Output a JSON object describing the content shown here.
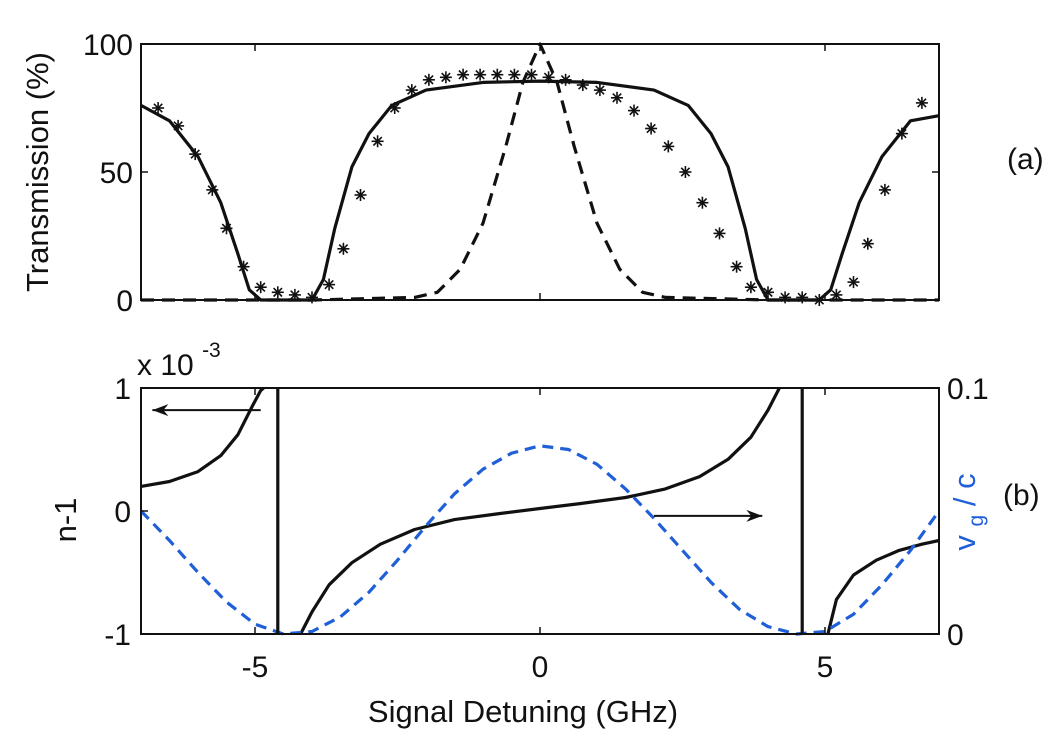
{
  "chart_data": [
    {
      "panel": "(a)",
      "type": "line",
      "ylabel": "Transmission (%)",
      "xlim": [
        -7,
        7
      ],
      "ylim": [
        0,
        100
      ],
      "xticks": [
        -5,
        0,
        5
      ],
      "yticks": [
        0,
        50,
        100
      ],
      "grid": false,
      "series": [
        {
          "style": "solid",
          "x": [
            -7,
            -6.5,
            -6,
            -5.6,
            -5.3,
            -5.1,
            -4.9,
            -4.5,
            -4.0,
            -3.8,
            -3.6,
            -3.3,
            -3.0,
            -2.6,
            -2.0,
            -1.0,
            0,
            1.0,
            2.0,
            2.6,
            3.0,
            3.3,
            3.6,
            3.8,
            4.0,
            4.5,
            4.9,
            5.1,
            5.3,
            5.6,
            6.0,
            6.5,
            7
          ],
          "y": [
            76,
            70,
            56,
            38,
            18,
            4,
            0,
            0,
            0,
            8,
            28,
            52,
            65,
            76,
            82,
            85,
            85.5,
            85,
            82,
            76,
            65,
            52,
            28,
            8,
            0,
            0,
            0,
            4,
            18,
            38,
            56,
            70,
            72
          ]
        },
        {
          "style": "dashed",
          "x": [
            -7,
            -4,
            -2.2,
            -1.8,
            -1.4,
            -1.0,
            -0.6,
            -0.3,
            0,
            0.3,
            0.6,
            1.0,
            1.4,
            1.8,
            2.2,
            4,
            7
          ],
          "y": [
            0,
            0,
            1,
            3,
            12,
            30,
            60,
            85,
            100,
            85,
            60,
            30,
            12,
            3,
            1,
            0,
            0
          ],
          "xrange_drawn": [
            -3.8,
            3.8
          ]
        },
        {
          "style": "markers",
          "marker": "asterisk",
          "x": [
            -6.7,
            -6.35,
            -6.05,
            -5.75,
            -5.5,
            -5.2,
            -4.9,
            -4.6,
            -4.3,
            -4.0,
            -3.7,
            -3.45,
            -3.15,
            -2.85,
            -2.55,
            -2.25,
            -1.95,
            -1.65,
            -1.35,
            -1.05,
            -0.75,
            -0.45,
            -0.15,
            0.15,
            0.45,
            0.75,
            1.05,
            1.35,
            1.65,
            1.95,
            2.25,
            2.55,
            2.85,
            3.15,
            3.45,
            3.7,
            4.0,
            4.3,
            4.6,
            4.9,
            5.2,
            5.5,
            5.75,
            6.05,
            6.35,
            6.7
          ],
          "y": [
            75,
            68,
            57,
            43,
            28,
            13,
            5,
            3,
            2,
            1,
            6,
            20,
            41,
            62,
            75,
            82,
            86,
            87,
            88,
            88,
            88,
            88,
            88,
            87,
            86,
            84,
            82,
            79,
            74,
            67,
            60,
            50,
            38,
            26,
            13,
            5,
            3,
            1,
            1,
            0,
            2,
            7,
            22,
            43,
            65,
            77
          ]
        }
      ]
    },
    {
      "panel": "(b)",
      "type": "line",
      "xlabel": "Signal Detuning (GHz)",
      "ylabel_left": "n-1",
      "ylabel_right_main": "v",
      "ylabel_right_sub": "g",
      "ylabel_right_rest": " / c",
      "y_multiplier": "x 10",
      "y_multiplier_exp": "-3",
      "xlim": [
        -7,
        7
      ],
      "ylim_left": [
        -1,
        1
      ],
      "ylim_right": [
        0,
        0.1
      ],
      "xticks": [
        -5,
        0,
        5
      ],
      "yticks_left": [
        -1,
        0,
        1
      ],
      "yticks_right": [
        0,
        0.1
      ],
      "right_axis_color": "#1f5fd8",
      "poles": [
        -4.6,
        4.6
      ],
      "series": [
        {
          "name": "n-1",
          "axis": "left",
          "style": "solid",
          "segments": [
            {
              "x": [
                -7,
                -6.5,
                -6,
                -5.6,
                -5.3,
                -5.05,
                -4.9,
                -4.85
              ],
              "y": [
                0.2,
                0.24,
                0.32,
                0.45,
                0.62,
                0.85,
                0.98,
                1.0
              ]
            },
            {
              "x": [
                -4.2,
                -4.0,
                -3.7,
                -3.3,
                -2.8,
                -2.2,
                -1.5,
                -0.7,
                0,
                0.7,
                1.5,
                2.2,
                2.8,
                3.3,
                3.7,
                4.0,
                4.2
              ],
              "y": [
                -1.0,
                -0.82,
                -0.6,
                -0.42,
                -0.27,
                -0.15,
                -0.07,
                -0.02,
                0.02,
                0.06,
                0.11,
                0.18,
                0.28,
                0.42,
                0.6,
                0.82,
                1.0
              ]
            },
            {
              "x": [
                5.05,
                5.2,
                5.5,
                5.9,
                6.3,
                6.7,
                7
              ],
              "y": [
                -1.0,
                -0.72,
                -0.52,
                -0.4,
                -0.32,
                -0.27,
                -0.24
              ]
            }
          ]
        },
        {
          "name": "vg/c",
          "axis": "right",
          "style": "dashed",
          "color": "#1f5fd8",
          "x": [
            -7,
            -6.5,
            -6,
            -5.5,
            -5,
            -4.5,
            -4.0,
            -3.5,
            -3.0,
            -2.5,
            -2.0,
            -1.5,
            -1.0,
            -0.5,
            0,
            0.5,
            1.0,
            1.5,
            2.0,
            2.5,
            3.0,
            3.5,
            4.0,
            4.5,
            5,
            5.5,
            6,
            6.5,
            7
          ],
          "y": [
            0.05,
            0.038,
            0.025,
            0.013,
            0.004,
            0.0,
            0.001,
            0.007,
            0.017,
            0.03,
            0.044,
            0.057,
            0.067,
            0.0735,
            0.0765,
            0.075,
            0.069,
            0.059,
            0.047,
            0.034,
            0.021,
            0.01,
            0.003,
            0.0,
            0.001,
            0.008,
            0.02,
            0.034,
            0.05
          ]
        }
      ],
      "arrows": [
        {
          "direction": "left",
          "from": [
            -4.9,
            0.82
          ],
          "to": [
            -6.8,
            0.82
          ]
        },
        {
          "direction": "right",
          "from": [
            2.0,
            -0.04
          ],
          "to": [
            3.9,
            -0.04
          ]
        }
      ]
    }
  ]
}
